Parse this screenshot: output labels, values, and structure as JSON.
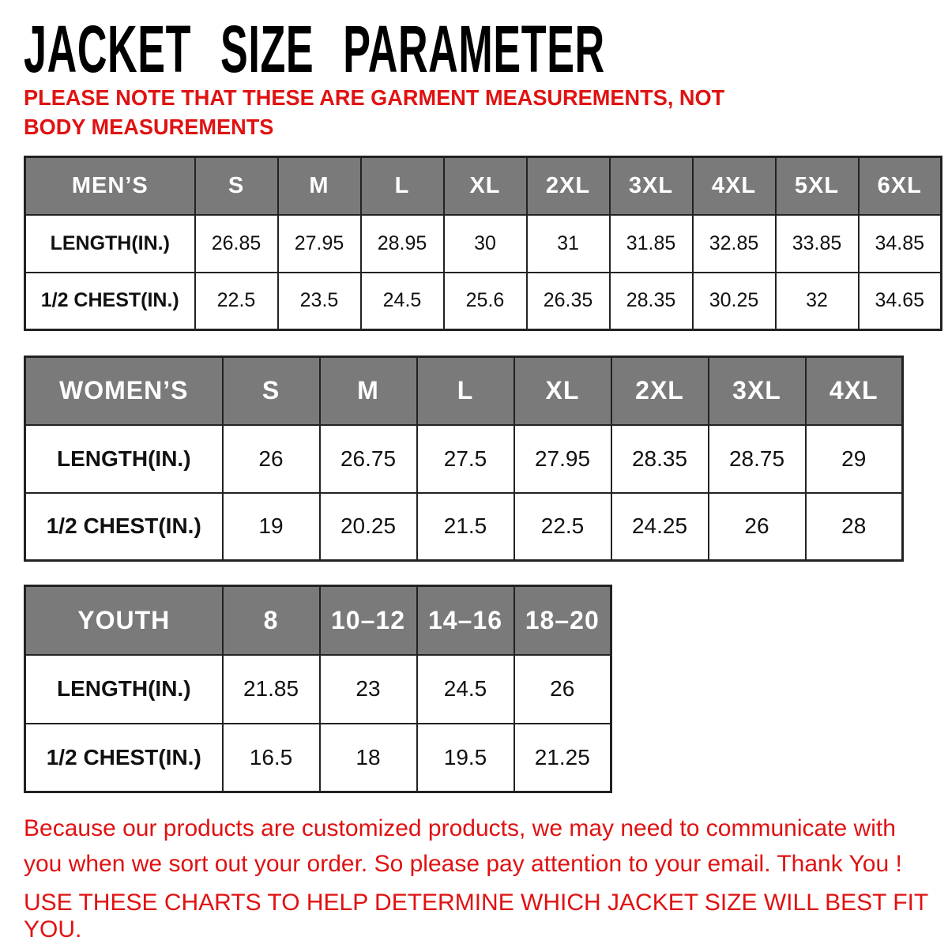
{
  "page": {
    "title": "JACKET SIZE PARAMETER",
    "note": "PLEASE NOTE THAT THESE ARE GARMENT MEASUREMENTS, NOT BODY MEASUREMENTS"
  },
  "colors": {
    "accent_red": "#e01212",
    "header_gray": "#7a7a7a",
    "border_black": "#222222"
  },
  "tables": [
    {
      "name": "mens",
      "header": "MEN’S",
      "sizes": [
        "S",
        "M",
        "L",
        "XL",
        "2XL",
        "3XL",
        "4XL",
        "5XL",
        "6XL"
      ],
      "rows": [
        {
          "label": "LENGTH(IN.)",
          "values": [
            "26.85",
            "27.95",
            "28.95",
            "30",
            "31",
            "31.85",
            "32.85",
            "33.85",
            "34.85"
          ]
        },
        {
          "label": "1/2 CHEST(IN.)",
          "values": [
            "22.5",
            "23.5",
            "24.5",
            "25.6",
            "26.35",
            "28.35",
            "30.25",
            "32",
            "34.65"
          ]
        }
      ]
    },
    {
      "name": "womens",
      "header": "WOMEN’S",
      "sizes": [
        "S",
        "M",
        "L",
        "XL",
        "2XL",
        "3XL",
        "4XL"
      ],
      "rows": [
        {
          "label": "LENGTH(IN.)",
          "values": [
            "26",
            "26.75",
            "27.5",
            "27.95",
            "28.35",
            "28.75",
            "29"
          ]
        },
        {
          "label": "1/2 CHEST(IN.)",
          "values": [
            "19",
            "20.25",
            "21.5",
            "22.5",
            "24.25",
            "26",
            "28"
          ]
        }
      ]
    },
    {
      "name": "youth",
      "header": "YOUTH",
      "sizes": [
        "8",
        "10–12",
        "14–16",
        "18–20"
      ],
      "rows": [
        {
          "label": "LENGTH(IN.)",
          "values": [
            "21.85",
            "23",
            "24.5",
            "26"
          ]
        },
        {
          "label": "1/2 CHEST(IN.)",
          "values": [
            "16.5",
            "18",
            "19.5",
            "21.25"
          ]
        }
      ]
    }
  ],
  "footer": {
    "line1": "Because our products are customized products, we may need to communicate with you when we sort out your order. So please pay attention to your email. Thank You !",
    "line2": "USE THESE CHARTS TO HELP DETERMINE WHICH JACKET SIZE WILL BEST FIT YOU."
  }
}
